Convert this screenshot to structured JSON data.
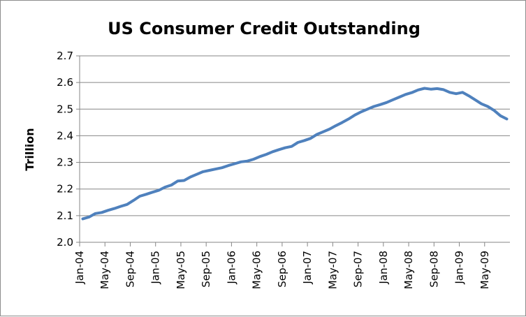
{
  "chart_data": {
    "type": "line",
    "title": "US Consumer Credit Outstanding",
    "xlabel": "",
    "ylabel": "Trillion",
    "ylim": [
      2.0,
      2.7
    ],
    "y_ticks": [
      "2.0",
      "2.1",
      "2.2",
      "2.3",
      "2.4",
      "2.5",
      "2.6",
      "2.7"
    ],
    "x_tick_labels": [
      "Jan-04",
      "May-04",
      "Sep-04",
      "Jan-05",
      "May-05",
      "Sep-05",
      "Jan-06",
      "May-06",
      "Sep-06",
      "Jan-07",
      "May-07",
      "Sep-07",
      "Jan-08",
      "May-08",
      "Sep-08",
      "Jan-09",
      "May-09"
    ],
    "grid": true,
    "legend": "none",
    "line_color": "#4f81bd",
    "x": [
      "Jan-04",
      "Feb-04",
      "Mar-04",
      "Apr-04",
      "May-04",
      "Jun-04",
      "Jul-04",
      "Aug-04",
      "Sep-04",
      "Oct-04",
      "Nov-04",
      "Dec-04",
      "Jan-05",
      "Feb-05",
      "Mar-05",
      "Apr-05",
      "May-05",
      "Jun-05",
      "Jul-05",
      "Aug-05",
      "Sep-05",
      "Oct-05",
      "Nov-05",
      "Dec-05",
      "Jan-06",
      "Feb-06",
      "Mar-06",
      "Apr-06",
      "May-06",
      "Jun-06",
      "Jul-06",
      "Aug-06",
      "Sep-06",
      "Oct-06",
      "Nov-06",
      "Dec-06",
      "Jan-07",
      "Feb-07",
      "Mar-07",
      "Apr-07",
      "May-07",
      "Jun-07",
      "Jul-07",
      "Aug-07",
      "Sep-07",
      "Oct-07",
      "Nov-07",
      "Dec-07",
      "Jan-08",
      "Feb-08",
      "Mar-08",
      "Apr-08",
      "May-08",
      "Jun-08",
      "Jul-08",
      "Aug-08",
      "Sep-08",
      "Oct-08",
      "Nov-08",
      "Dec-08",
      "Jan-09",
      "Feb-09",
      "Mar-09",
      "Apr-09",
      "May-09",
      "Jun-09",
      "Jul-09",
      "Aug-09"
    ],
    "series": [
      {
        "values": [
          2.088,
          2.095,
          2.108,
          2.112,
          2.12,
          2.127,
          2.135,
          2.142,
          2.157,
          2.173,
          2.18,
          2.188,
          2.195,
          2.207,
          2.215,
          2.23,
          2.232,
          2.245,
          2.255,
          2.265,
          2.27,
          2.275,
          2.28,
          2.288,
          2.295,
          2.302,
          2.305,
          2.312,
          2.322,
          2.33,
          2.34,
          2.348,
          2.355,
          2.36,
          2.375,
          2.382,
          2.39,
          2.405,
          2.415,
          2.425,
          2.438,
          2.45,
          2.463,
          2.478,
          2.49,
          2.5,
          2.51,
          2.517,
          2.525,
          2.535,
          2.545,
          2.555,
          2.562,
          2.572,
          2.578,
          2.575,
          2.577,
          2.573,
          2.563,
          2.558,
          2.563,
          2.55,
          2.535,
          2.52,
          2.51,
          2.495,
          2.475,
          2.463
        ]
      }
    ]
  }
}
